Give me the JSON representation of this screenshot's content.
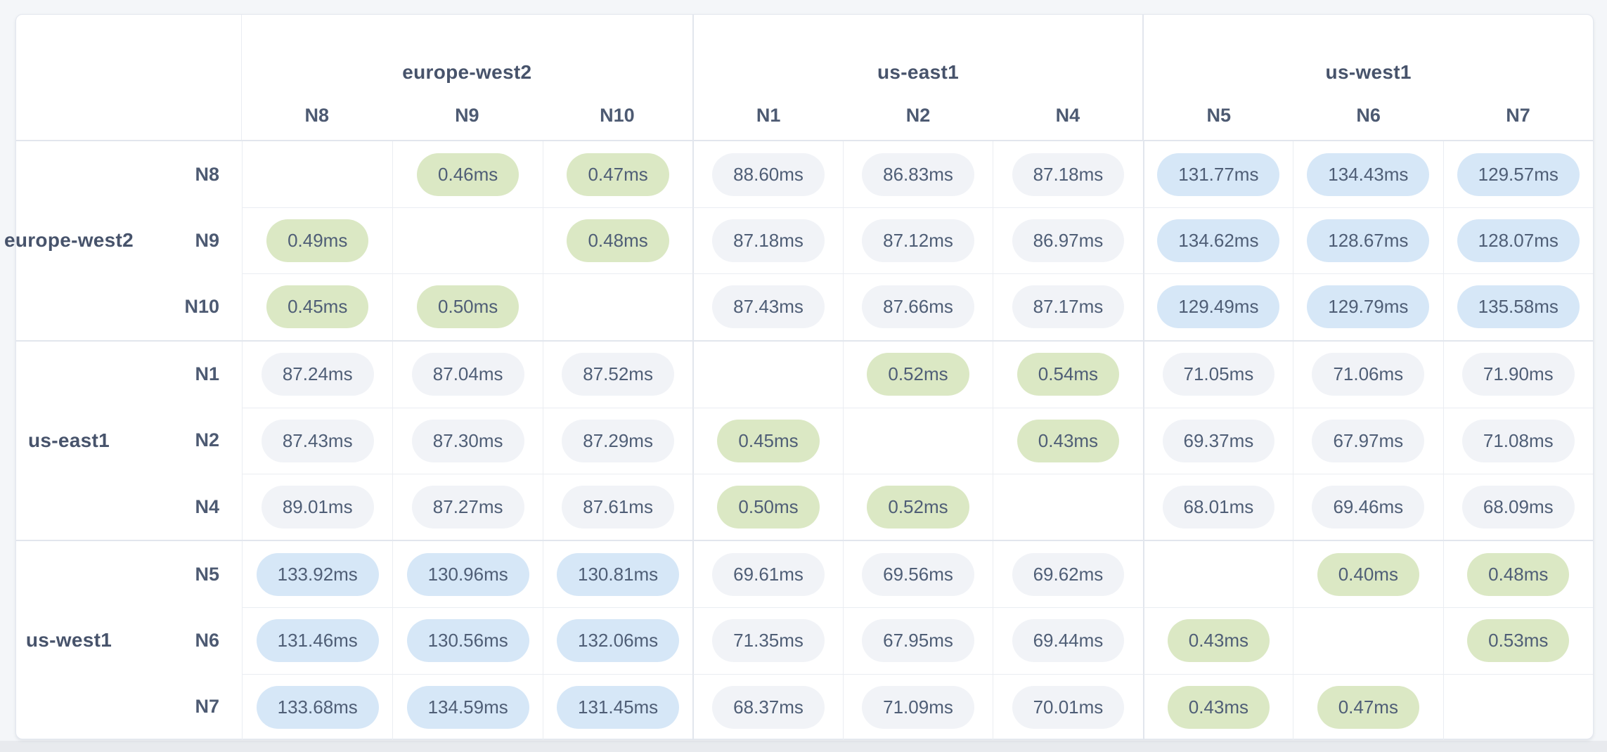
{
  "table": {
    "unit": "ms",
    "column_groups": [
      {
        "region": "europe-west2",
        "nodes": [
          "N8",
          "N9",
          "N10"
        ]
      },
      {
        "region": "us-east1",
        "nodes": [
          "N1",
          "N2",
          "N4"
        ]
      },
      {
        "region": "us-west1",
        "nodes": [
          "N5",
          "N6",
          "N7"
        ]
      }
    ],
    "row_groups": [
      {
        "region": "europe-west2",
        "rows": [
          {
            "node": "N8",
            "values": [
              "",
              "0.46ms",
              "0.47ms",
              "88.60ms",
              "86.83ms",
              "87.18ms",
              "131.77ms",
              "134.43ms",
              "129.57ms"
            ]
          },
          {
            "node": "N9",
            "values": [
              "0.49ms",
              "",
              "0.48ms",
              "87.18ms",
              "87.12ms",
              "86.97ms",
              "134.62ms",
              "128.67ms",
              "128.07ms"
            ]
          },
          {
            "node": "N10",
            "values": [
              "0.45ms",
              "0.50ms",
              "",
              "87.43ms",
              "87.66ms",
              "87.17ms",
              "129.49ms",
              "129.79ms",
              "135.58ms"
            ]
          }
        ]
      },
      {
        "region": "us-east1",
        "rows": [
          {
            "node": "N1",
            "values": [
              "87.24ms",
              "87.04ms",
              "87.52ms",
              "",
              "0.52ms",
              "0.54ms",
              "71.05ms",
              "71.06ms",
              "71.90ms"
            ]
          },
          {
            "node": "N2",
            "values": [
              "87.43ms",
              "87.30ms",
              "87.29ms",
              "0.45ms",
              "",
              "0.43ms",
              "69.37ms",
              "67.97ms",
              "71.08ms"
            ]
          },
          {
            "node": "N4",
            "values": [
              "89.01ms",
              "87.27ms",
              "87.61ms",
              "0.50ms",
              "0.52ms",
              "",
              "68.01ms",
              "69.46ms",
              "68.09ms"
            ]
          }
        ]
      },
      {
        "region": "us-west1",
        "rows": [
          {
            "node": "N5",
            "values": [
              "133.92ms",
              "130.96ms",
              "130.81ms",
              "69.61ms",
              "69.56ms",
              "69.62ms",
              "",
              "0.40ms",
              "0.48ms"
            ]
          },
          {
            "node": "N6",
            "values": [
              "131.46ms",
              "130.56ms",
              "132.06ms",
              "71.35ms",
              "67.95ms",
              "69.44ms",
              "0.43ms",
              "",
              "0.53ms"
            ]
          },
          {
            "node": "N7",
            "values": [
              "133.68ms",
              "134.59ms",
              "131.45ms",
              "68.37ms",
              "71.09ms",
              "70.01ms",
              "0.43ms",
              "0.47ms",
              ""
            ]
          }
        ]
      }
    ]
  },
  "colors": {
    "latency_low_bg": "#dbe8c4",
    "latency_mid_bg": "#f1f3f7",
    "latency_high_bg": "#d6e7f7",
    "label_text": "#47536b",
    "value_text": "#4f5e76",
    "card_bg": "#ffffff",
    "page_bg": "#f4f6f9"
  }
}
